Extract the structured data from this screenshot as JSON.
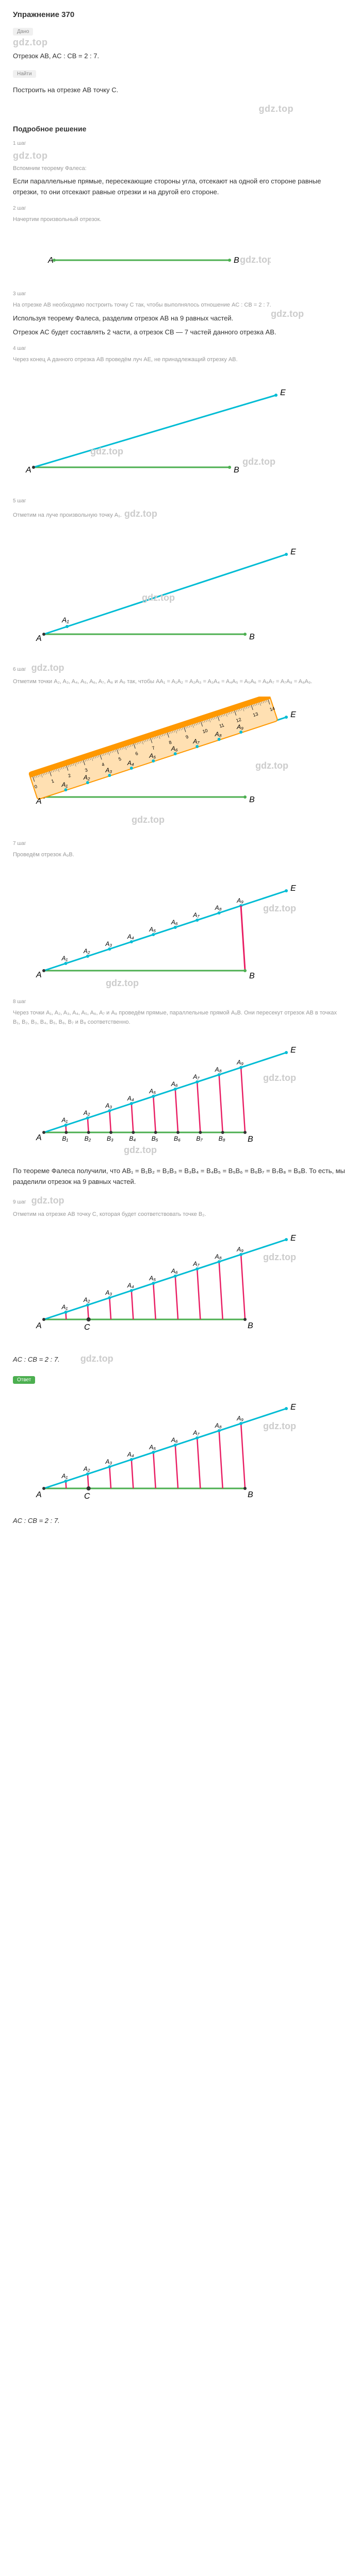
{
  "title": "Упражнение 370",
  "labels": {
    "dano": "Дано",
    "naiti": "Найти",
    "otvet": "Ответ"
  },
  "watermark": "gdz.top",
  "given": {
    "text": "Отрезок AB, AC : CB = 2 : 7."
  },
  "find": {
    "text": "Построить на отрезке AB точку C."
  },
  "detailed_solution_title": "Подробное решение",
  "steps": [
    {
      "label": "1 шаг",
      "heading": "Вспомним теорему Фалеса:",
      "text": "Если параллельные прямые, пересекающие стороны угла, отсекают на одной его стороне равные отрезки, то они отсекают равные отрезки и на другой его стороне."
    },
    {
      "label": "2 шаг",
      "text": "Начертим произвольный отрезок."
    },
    {
      "label": "3 шаг",
      "text1": "На отрезке AB необходимо построить точку C так, чтобы выполнялось отношение AC : CB = 2 : 7.",
      "text2": "Используя теорему Фалеса, разделим отрезок AB на 9 равных частей.",
      "text3": "Отрезок AC будет составлять 2 части, а отрезок CB — 7 частей данного отрезка AB."
    },
    {
      "label": "4 шаг",
      "text": "Через конец A данного отрезка AB проведём луч AE, не принадлежащий отрезку AB."
    },
    {
      "label": "5 шаг",
      "text": "Отметим на луче произвольную точку A₁."
    },
    {
      "label": "6 шаг",
      "text": "Отметим точки A₂, A₃, A₄, A₅, A₆, A₇, A₈ и A₉ так, чтобы AA₁ = A₁A₂ = A₂A₃ = A₃A₄ = A₄A₅ = A₅A₆ = A₆A₇ = A₇A₈ = A₈A₉."
    },
    {
      "label": "7 шаг",
      "text": "Проведём отрезок A₉B."
    },
    {
      "label": "8 шаг",
      "text1": "Через точки A₁, A₂, A₃, A₄, A₅, A₆, A₇ и A₈ проведём прямые, параллельные прямой A₉B. Они пересекут отрезок AB в точках B₁, B₂, B₃, B₄, B₅, B₆, B₇ и B₈ соответственно.",
      "text2": "По теореме Фалеса получили, что AB₁ = B₁B₂ = B₂B₃ = B₃B₄ = B₄B₅ = B₅B₆ = B₆B₇ = B₇B₈ = B₈B. То есть, мы разделили отрезок на 9 равных частей."
    },
    {
      "label": "9 шаг",
      "text": "Отметим на отрезке AB точку C, которая будет соответствовать точке B₂."
    }
  ],
  "ratio": "AC : CB = 2 : 7.",
  "colors": {
    "green_line": "#4caf50",
    "cyan_line": "#00bcd4",
    "pink_line": "#e91e63",
    "ruler_orange": "#ff9800",
    "ruler_body": "#ffe0b2",
    "gray_text": "#888",
    "light_gray": "#ccc"
  },
  "diagram1": {
    "points": {
      "A": "A",
      "B": "B"
    }
  },
  "diagram2": {
    "points": {
      "A": "A",
      "B": "B",
      "E": "E"
    }
  },
  "diagram3": {
    "points": {
      "A": "A",
      "B": "B",
      "E": "E",
      "A1": "A₁"
    }
  },
  "diagram4": {
    "points": {
      "A": "A",
      "B": "B",
      "E": "E"
    },
    "labels_A": [
      "A₁",
      "A₂",
      "A₃",
      "A₄",
      "A₅",
      "A₆",
      "A₇",
      "A₈",
      "A₉"
    ],
    "ruler_marks": [
      0,
      1,
      2,
      3,
      4,
      5,
      6,
      7,
      8,
      9,
      10,
      11,
      12,
      13,
      14
    ]
  },
  "diagram5": {
    "points": {
      "A": "A",
      "B": "B",
      "E": "E"
    },
    "labels_A": [
      "A₁",
      "A₂",
      "A₃",
      "A₄",
      "A₅",
      "A₆",
      "A₇",
      "A₈",
      "A₉"
    ]
  },
  "diagram6": {
    "points": {
      "A": "A",
      "B": "B",
      "E": "E"
    },
    "labels_A": [
      "A₁",
      "A₂",
      "A₃",
      "A₄",
      "A₅",
      "A₆",
      "A₇",
      "A₈",
      "A₉"
    ],
    "labels_B": [
      "B₁",
      "B₂",
      "B₃",
      "B₄",
      "B₅",
      "B₆",
      "B₇",
      "B₈"
    ]
  },
  "diagram7": {
    "points": {
      "A": "A",
      "B": "B",
      "E": "E",
      "C": "C"
    },
    "labels_A": [
      "A₁",
      "A₂",
      "A₃",
      "A₄",
      "A₅",
      "A₆",
      "A₇",
      "A₈",
      "A₉"
    ]
  }
}
